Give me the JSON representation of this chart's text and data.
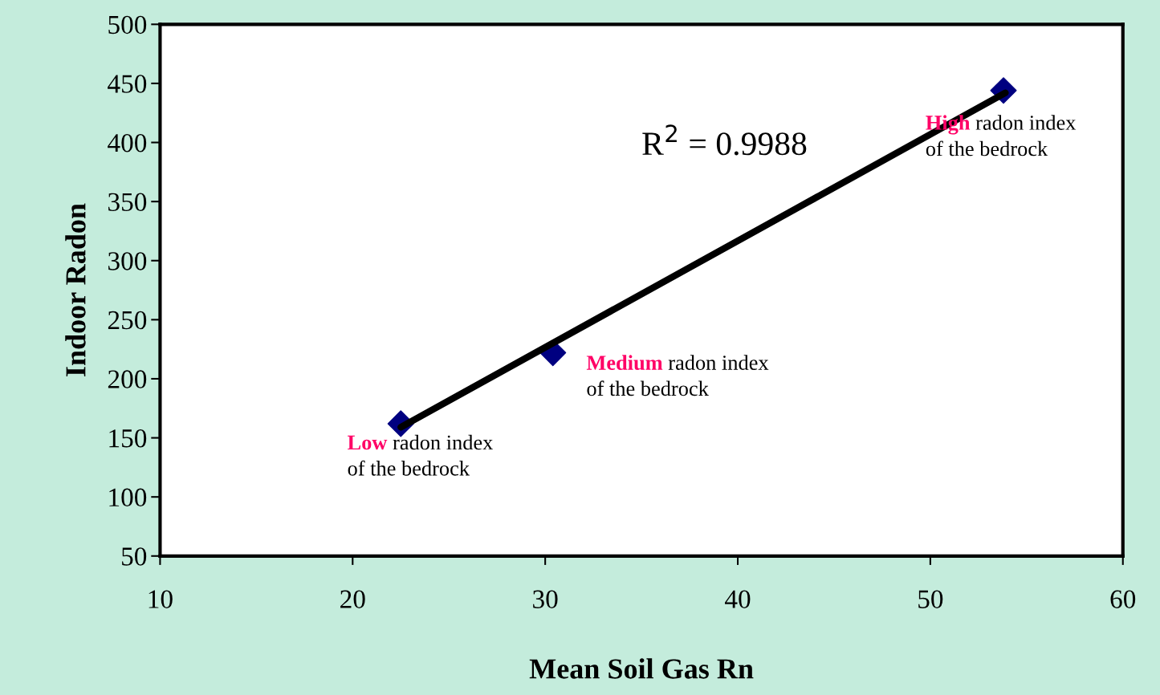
{
  "chart_data": {
    "type": "scatter",
    "xlabel": "Mean Soil Gas Rn",
    "ylabel": "Indoor Radon",
    "xlim": [
      10,
      60
    ],
    "xticks": [
      10,
      20,
      30,
      40,
      50,
      60
    ],
    "ylim": [
      50,
      500
    ],
    "yticks": [
      50,
      100,
      150,
      200,
      250,
      300,
      350,
      400,
      450,
      500
    ],
    "grid": false,
    "series": [
      {
        "type": "line",
        "color": "#000000",
        "x": [
          22.5,
          53.9
        ],
        "values": [
          159,
          442
        ],
        "marker": "none",
        "line_style": "solid"
      },
      {
        "color": "#000080",
        "x": [
          22.5,
          30.4,
          53.8
        ],
        "values": [
          162,
          222,
          444
        ],
        "marker": "diamond"
      }
    ],
    "annotations": [
      "R$^{2}$ = 0.9988",
      {
        "text": "Low radon index\nof the bedrock",
        "x": 22.5,
        "y": 162
      },
      {
        "text": "Medium radon index\nof the bedrock",
        "x": 30.4,
        "y": 222
      },
      {
        "text": "High radon index\nof the bedrock",
        "x": 53.8,
        "y": 444
      }
    ]
  }
}
